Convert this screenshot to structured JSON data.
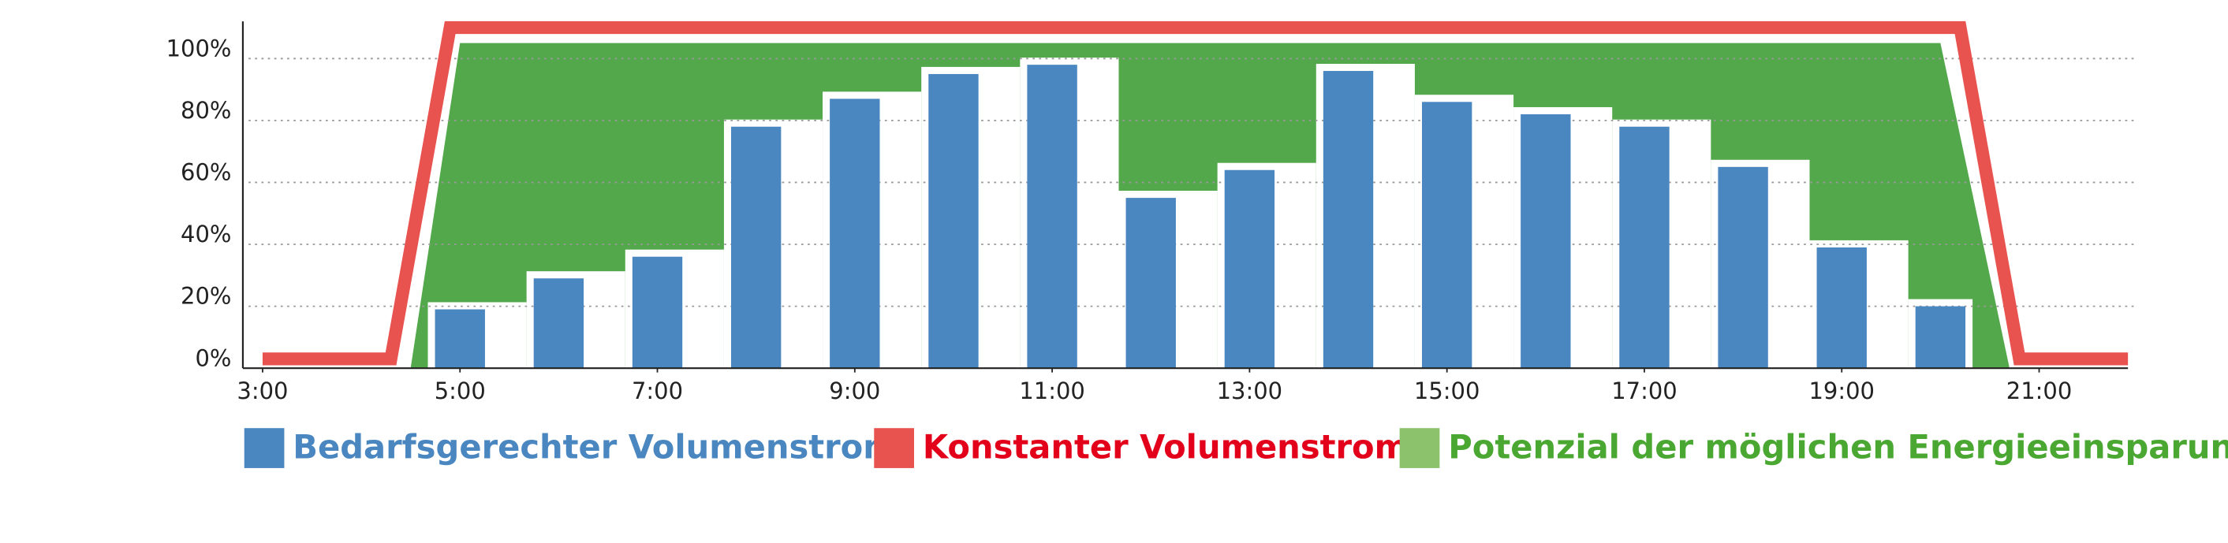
{
  "chart_data": {
    "type": "bar",
    "xlim": [
      2.8,
      21.9
    ],
    "xticks": [
      {
        "value": 3,
        "label": "3:00"
      },
      {
        "value": 5,
        "label": "5:00"
      },
      {
        "value": 7,
        "label": "7:00"
      },
      {
        "value": 9,
        "label": "9:00"
      },
      {
        "value": 11,
        "label": "11:00"
      },
      {
        "value": 13,
        "label": "13:00"
      },
      {
        "value": 15,
        "label": "15:00"
      },
      {
        "value": 17,
        "label": "17:00"
      },
      {
        "value": 19,
        "label": "19:00"
      },
      {
        "value": 21,
        "label": "21:00"
      }
    ],
    "ylim": [
      0,
      112
    ],
    "yticks": [
      {
        "value": 0,
        "label": "0%"
      },
      {
        "value": 20,
        "label": "20%"
      },
      {
        "value": 40,
        "label": "40%"
      },
      {
        "value": 60,
        "label": "60%"
      },
      {
        "value": 80,
        "label": "80%"
      },
      {
        "value": 100,
        "label": "100%"
      }
    ],
    "grid": true,
    "series": [
      {
        "name": "Bedarfsgerechter Volumenstrom",
        "type": "bar",
        "color": "#4a87c0",
        "label_color": "#4a87c0",
        "x": [
          5,
          6,
          7,
          8,
          9,
          10,
          11,
          12,
          13,
          14,
          15,
          16,
          17,
          18,
          19,
          20
        ],
        "values": [
          19,
          29,
          36,
          78,
          87,
          95,
          98,
          55,
          64,
          96,
          86,
          82,
          78,
          65,
          39,
          20
        ]
      },
      {
        "name": "Konstanter Volumenstrom",
        "type": "line",
        "color": "#e8524f",
        "label_color": "#e2001a",
        "x": [
          3.0,
          4.3,
          4.9,
          20.2,
          20.8,
          21.9
        ],
        "values": [
          3,
          3,
          110,
          110,
          3,
          3
        ]
      },
      {
        "name": "Potenzial der möglichen Energieeinsparung",
        "type": "area",
        "color": "#52a84a",
        "legend_color": "#8cc26c",
        "label_color": "#4aa832",
        "x": [
          4.5,
          5.0,
          20.0,
          20.7
        ],
        "values": [
          0,
          105,
          105,
          0
        ]
      }
    ]
  }
}
